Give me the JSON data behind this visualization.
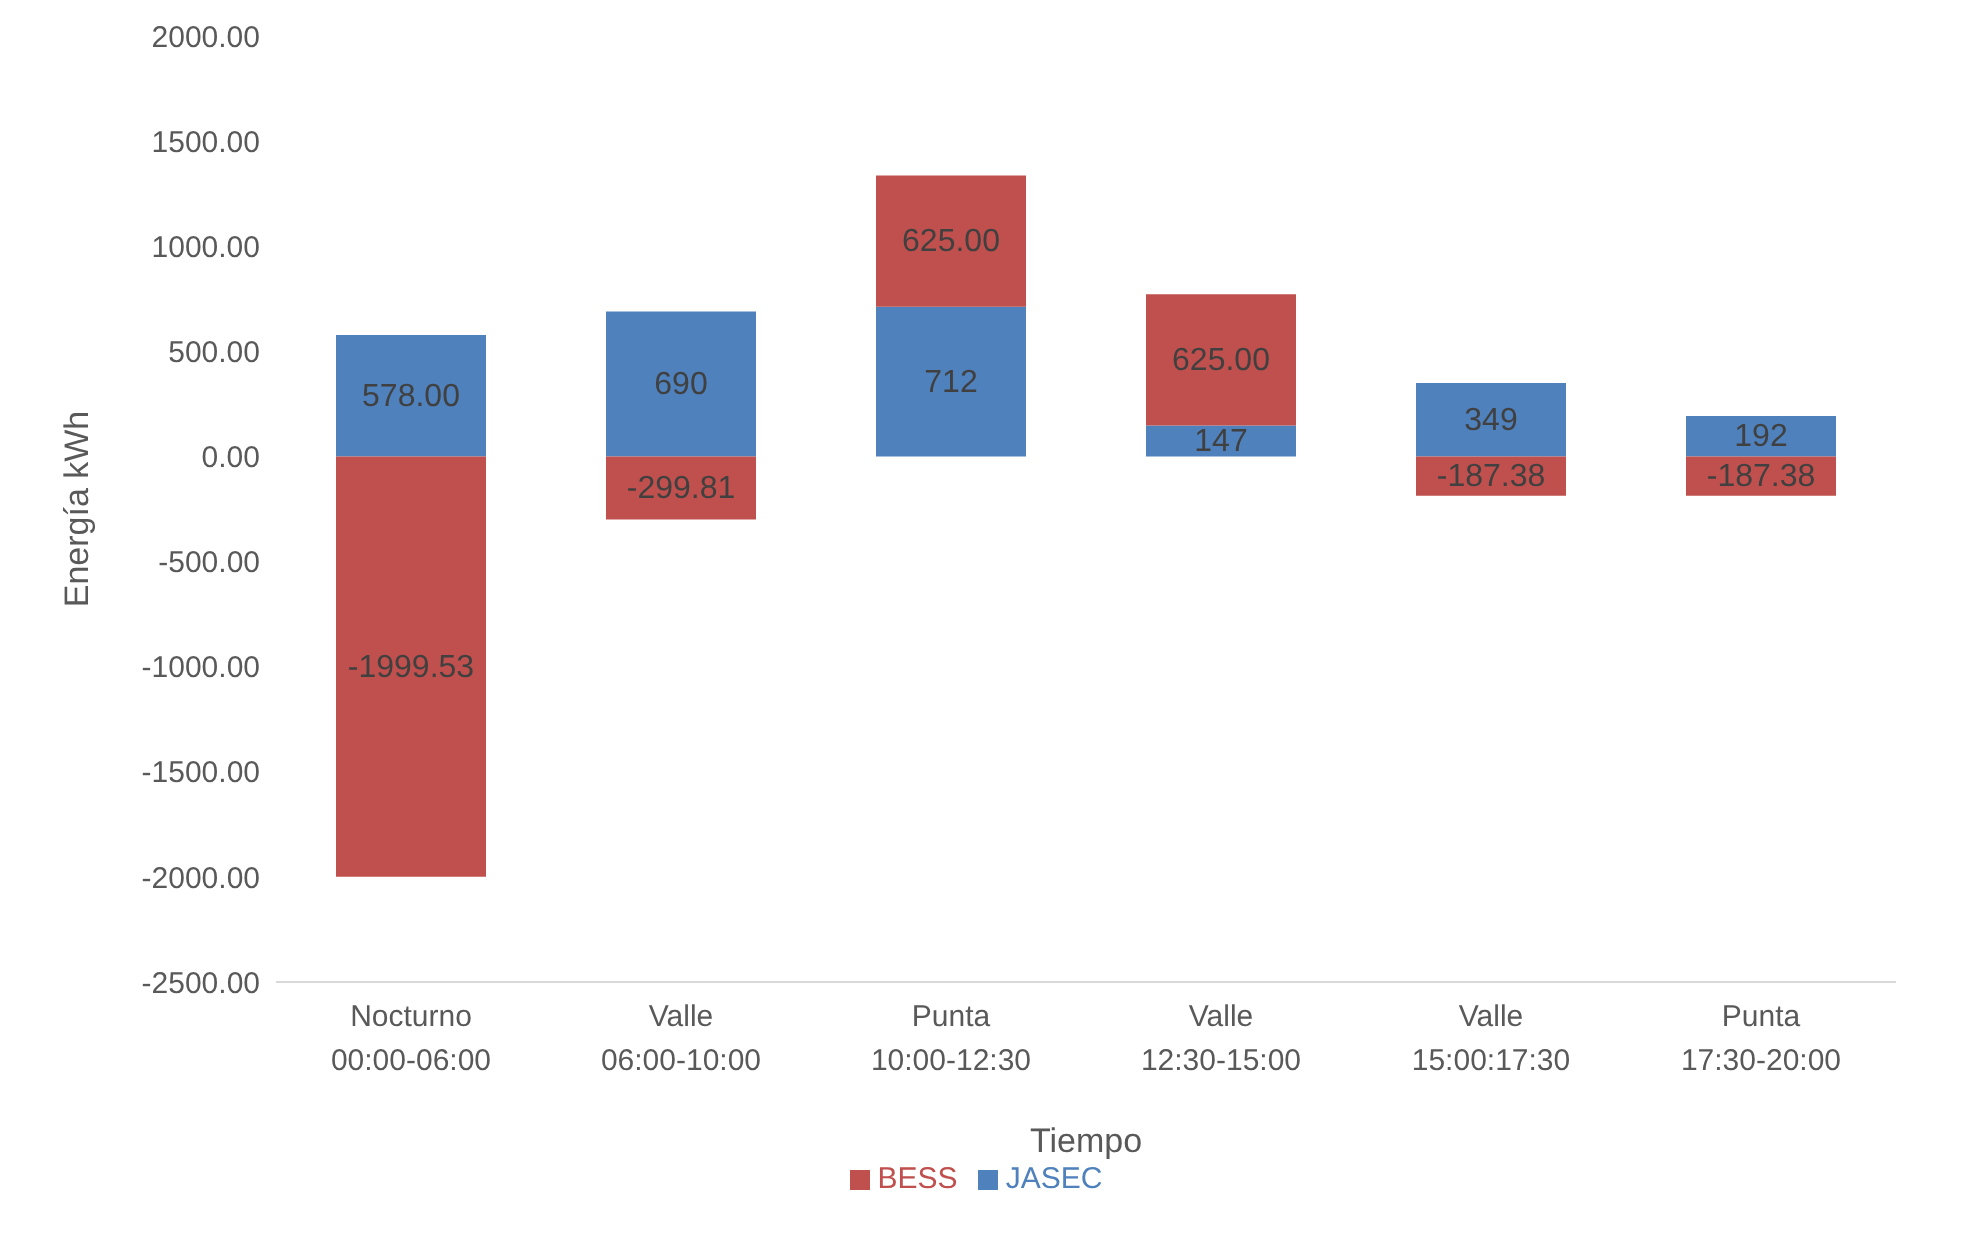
{
  "chart_data": {
    "type": "bar",
    "stacked": true,
    "xlabel": "Tiempo",
    "ylabel": "Energía kWh",
    "categories": [
      "Nocturno 00:00-06:00",
      "Valle 06:00-10:00",
      "Punta 10:00-12:30",
      "Valle 12:30-15:00",
      "Valle 15:00:17:30",
      "Punta 17:30-20:00"
    ],
    "series": [
      {
        "name": "JASEC",
        "color": "#4f81bd",
        "values": [
          578,
          690,
          712,
          147,
          349,
          192
        ],
        "value_labels": [
          "578.00",
          "690",
          "712",
          "147",
          "349",
          "192"
        ]
      },
      {
        "name": "BESS",
        "color": "#c0504d",
        "values": [
          -1999.53,
          -299.81,
          625,
          625,
          -187.38,
          -187.38
        ],
        "value_labels": [
          "-1999.53",
          "-299.81",
          "625.00",
          "625.00",
          "-187.38",
          "-187.38"
        ]
      }
    ],
    "ylim": [
      -2500,
      2000
    ],
    "yticks": [
      {
        "value": -2500,
        "label": "-2500.00"
      },
      {
        "value": -2000,
        "label": "-2000.00"
      },
      {
        "value": -1500,
        "label": "-1500.00"
      },
      {
        "value": -1000,
        "label": "-1000.00"
      },
      {
        "value": -500,
        "label": "-500.00"
      },
      {
        "value": 0,
        "label": "0.00"
      },
      {
        "value": 500,
        "label": "500.00"
      },
      {
        "value": 1000,
        "label": "1000.00"
      },
      {
        "value": 1500,
        "label": "1500.00"
      },
      {
        "value": 2000,
        "label": "2000.00"
      }
    ],
    "grid": false,
    "legend": "bottom"
  }
}
